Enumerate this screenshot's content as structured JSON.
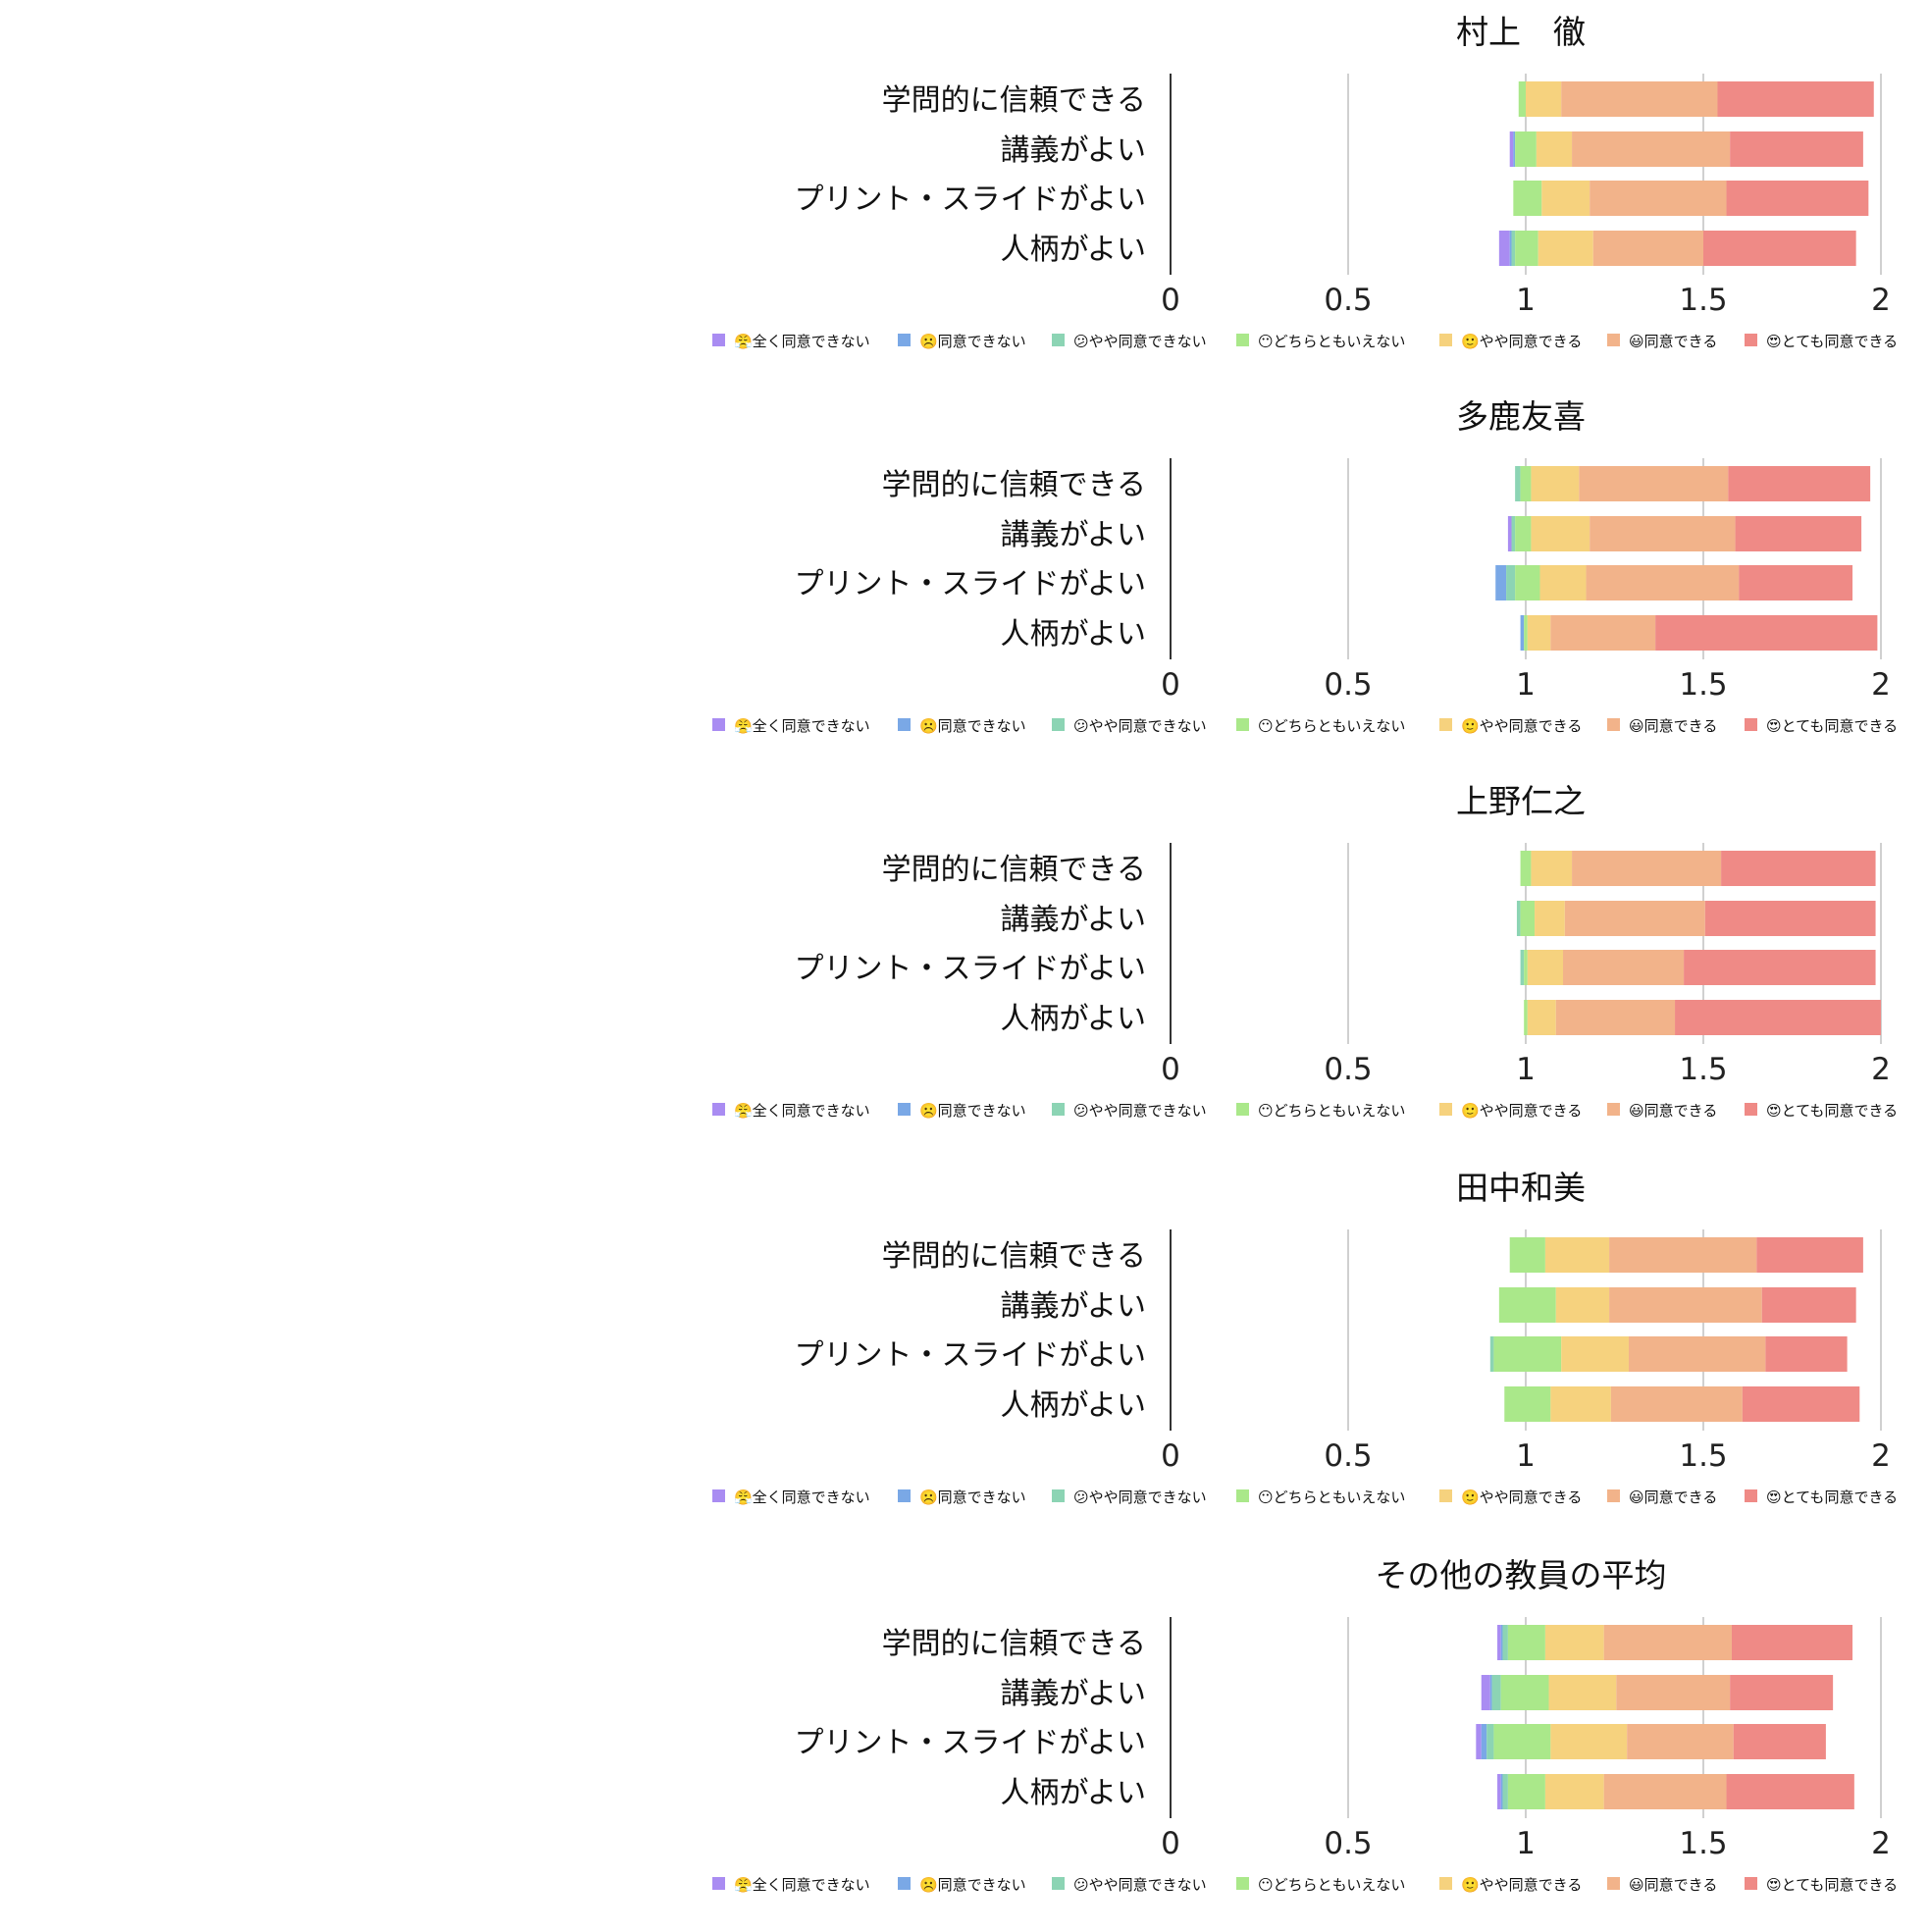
{
  "colors": [
    "#a98cf2",
    "#7aa8e6",
    "#8cd4b4",
    "#aae88a",
    "#f6d27e",
    "#f2b38a",
    "#ef8a86"
  ],
  "legend": [
    {
      "emoji": "😤",
      "label": "全く同意できない"
    },
    {
      "emoji": "☹️",
      "label": "同意できない"
    },
    {
      "emoji": "😕",
      "label": "やや同意できない"
    },
    {
      "emoji": "😶",
      "label": "どちらともいえない"
    },
    {
      "emoji": "🙂",
      "label": "やや同意できる"
    },
    {
      "emoji": "😃",
      "label": "同意できる"
    },
    {
      "emoji": "😍",
      "label": "とても同意できる"
    }
  ],
  "chart_data": [
    {
      "type": "bar",
      "orientation": "horizontal",
      "stacked": true,
      "title": "村上　徹",
      "categories": [
        "学問的に信頼できる",
        "講義がよい",
        "プリント・スライドがよい",
        "人柄がよい"
      ],
      "xticks": [
        "0",
        "0.5",
        "1",
        "1.5",
        "2"
      ],
      "xlim": [
        0,
        2
      ],
      "start": [
        0.98,
        0.955,
        0.965,
        0.925
      ],
      "series": [
        {
          "name": "全く同意できない",
          "values": [
            0,
            0.01,
            0,
            0.03
          ]
        },
        {
          "name": "同意できない",
          "values": [
            0,
            0.005,
            0,
            0.005
          ]
        },
        {
          "name": "やや同意できない",
          "values": [
            0,
            0,
            0,
            0.01
          ]
        },
        {
          "name": "どちらともいえない",
          "values": [
            0.02,
            0.06,
            0.08,
            0.065
          ]
        },
        {
          "name": "やや同意できる",
          "values": [
            0.1,
            0.1,
            0.135,
            0.155
          ]
        },
        {
          "name": "同意できる",
          "values": [
            0.44,
            0.445,
            0.385,
            0.31
          ]
        },
        {
          "name": "とても同意できる",
          "values": [
            0.44,
            0.375,
            0.4,
            0.43
          ]
        }
      ]
    },
    {
      "type": "bar",
      "orientation": "horizontal",
      "stacked": true,
      "title": "多鹿友喜",
      "categories": [
        "学問的に信頼できる",
        "講義がよい",
        "プリント・スライドがよい",
        "人柄がよい"
      ],
      "xticks": [
        "0",
        "0.5",
        "1",
        "1.5",
        "2"
      ],
      "xlim": [
        0,
        2
      ],
      "start": [
        0.97,
        0.95,
        0.915,
        0.985
      ],
      "series": [
        {
          "name": "全く同意できない",
          "values": [
            0,
            0.01,
            0,
            0
          ]
        },
        {
          "name": "同意できない",
          "values": [
            0,
            0,
            0.03,
            0.01
          ]
        },
        {
          "name": "やや同意できない",
          "values": [
            0.015,
            0.01,
            0.025,
            0
          ]
        },
        {
          "name": "どちらともいえない",
          "values": [
            0.03,
            0.045,
            0.07,
            0.01
          ]
        },
        {
          "name": "やや同意できる",
          "values": [
            0.135,
            0.165,
            0.13,
            0.065
          ]
        },
        {
          "name": "同意できる",
          "values": [
            0.42,
            0.41,
            0.43,
            0.295
          ]
        },
        {
          "name": "とても同意できる",
          "values": [
            0.4,
            0.355,
            0.32,
            0.625
          ]
        }
      ]
    },
    {
      "type": "bar",
      "orientation": "horizontal",
      "stacked": true,
      "title": "上野仁之",
      "categories": [
        "学問的に信頼できる",
        "講義がよい",
        "プリント・スライドがよい",
        "人柄がよい"
      ],
      "xticks": [
        "0",
        "0.5",
        "1",
        "1.5",
        "2"
      ],
      "xlim": [
        0,
        2
      ],
      "start": [
        0.985,
        0.975,
        0.985,
        0.995
      ],
      "series": [
        {
          "name": "全く同意できない",
          "values": [
            0,
            0,
            0,
            0
          ]
        },
        {
          "name": "同意できない",
          "values": [
            0,
            0,
            0,
            0
          ]
        },
        {
          "name": "やや同意できない",
          "values": [
            0,
            0.01,
            0.01,
            0
          ]
        },
        {
          "name": "どちらともいえない",
          "values": [
            0.03,
            0.04,
            0.01,
            0.01
          ]
        },
        {
          "name": "やや同意できる",
          "values": [
            0.115,
            0.085,
            0.1,
            0.08
          ]
        },
        {
          "name": "同意できる",
          "values": [
            0.42,
            0.395,
            0.34,
            0.335
          ]
        },
        {
          "name": "とても同意できる",
          "values": [
            0.435,
            0.48,
            0.54,
            0.58
          ]
        }
      ]
    },
    {
      "type": "bar",
      "orientation": "horizontal",
      "stacked": true,
      "title": "田中和美",
      "categories": [
        "学問的に信頼できる",
        "講義がよい",
        "プリント・スライドがよい",
        "人柄がよい"
      ],
      "xticks": [
        "0",
        "0.5",
        "1",
        "1.5",
        "2"
      ],
      "xlim": [
        0,
        2
      ],
      "start": [
        0.955,
        0.925,
        0.9,
        0.94
      ],
      "series": [
        {
          "name": "全く同意できない",
          "values": [
            0,
            0,
            0,
            0
          ]
        },
        {
          "name": "同意できない",
          "values": [
            0,
            0,
            0,
            0
          ]
        },
        {
          "name": "やや同意できない",
          "values": [
            0,
            0,
            0.01,
            0
          ]
        },
        {
          "name": "どちらともいえない",
          "values": [
            0.1,
            0.16,
            0.19,
            0.13
          ]
        },
        {
          "name": "やや同意できる",
          "values": [
            0.18,
            0.15,
            0.19,
            0.17
          ]
        },
        {
          "name": "同意できる",
          "values": [
            0.415,
            0.43,
            0.385,
            0.37
          ]
        },
        {
          "name": "とても同意できる",
          "values": [
            0.3,
            0.265,
            0.23,
            0.33
          ]
        }
      ]
    },
    {
      "type": "bar",
      "orientation": "horizontal",
      "stacked": true,
      "title": "その他の教員の平均",
      "categories": [
        "学問的に信頼できる",
        "講義がよい",
        "プリント・スライドがよい",
        "人柄がよい"
      ],
      "xticks": [
        "0",
        "0.5",
        "1",
        "1.5",
        "2"
      ],
      "xlim": [
        0,
        2
      ],
      "start": [
        0.92,
        0.875,
        0.86,
        0.92
      ],
      "series": [
        {
          "name": "全く同意できない",
          "values": [
            0.01,
            0.025,
            0.015,
            0.01
          ]
        },
        {
          "name": "同意できない",
          "values": [
            0.005,
            0.005,
            0.015,
            0.005
          ]
        },
        {
          "name": "やや同意できない",
          "values": [
            0.015,
            0.025,
            0.02,
            0.015
          ]
        },
        {
          "name": "どちらともいえない",
          "values": [
            0.105,
            0.135,
            0.16,
            0.105
          ]
        },
        {
          "name": "やや同意できる",
          "values": [
            0.165,
            0.19,
            0.215,
            0.165
          ]
        },
        {
          "name": "同意できる",
          "values": [
            0.36,
            0.32,
            0.3,
            0.345
          ]
        },
        {
          "name": "とても同意できる",
          "values": [
            0.34,
            0.29,
            0.26,
            0.36
          ]
        }
      ]
    }
  ]
}
